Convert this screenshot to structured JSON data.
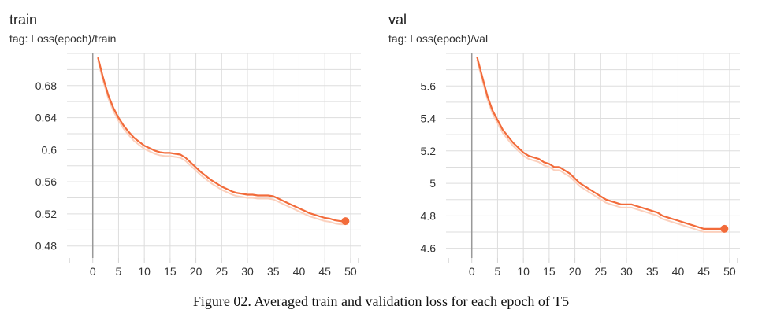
{
  "caption": "Figure 02. Averaged train and validation loss for each epoch of T5",
  "colors": {
    "line": "#f26b3a",
    "raw": "#fbd0bd",
    "grid": "#dddddd",
    "axis": "#999999",
    "tick": "#d4d4d4"
  },
  "chart_data": [
    {
      "type": "line",
      "title": "train",
      "subtitle": "tag: Loss(epoch)/train",
      "xlim": [
        -5,
        52
      ],
      "ylim": [
        0.465,
        0.72
      ],
      "xticks": [
        0,
        5,
        10,
        15,
        20,
        25,
        30,
        35,
        40,
        45,
        50
      ],
      "xtick_labels": [
        "0",
        "5",
        "10",
        "15",
        "20",
        "25",
        "30",
        "35",
        "40",
        "45",
        "50"
      ],
      "yticks": [
        0.48,
        0.52,
        0.56,
        0.6,
        0.64,
        0.68
      ],
      "ytick_labels": [
        "0.48",
        "0.52",
        "0.56",
        "0.6",
        "0.64",
        "0.68"
      ],
      "grid": true,
      "series": [
        {
          "x": [
            1,
            2,
            3,
            4,
            5,
            6,
            7,
            8,
            9,
            10,
            11,
            12,
            13,
            14,
            15,
            16,
            17,
            18,
            19,
            20,
            21,
            22,
            23,
            24,
            25,
            26,
            27,
            28,
            29,
            30,
            31,
            32,
            33,
            34,
            35,
            36,
            37,
            38,
            39,
            40,
            41,
            42,
            43,
            44,
            45,
            46,
            47,
            48,
            49
          ],
          "values": [
            0.715,
            0.69,
            0.668,
            0.652,
            0.64,
            0.63,
            0.622,
            0.615,
            0.61,
            0.605,
            0.602,
            0.599,
            0.597,
            0.596,
            0.596,
            0.595,
            0.594,
            0.59,
            0.584,
            0.578,
            0.572,
            0.567,
            0.562,
            0.558,
            0.554,
            0.551,
            0.548,
            0.546,
            0.545,
            0.544,
            0.544,
            0.543,
            0.543,
            0.543,
            0.542,
            0.539,
            0.536,
            0.533,
            0.53,
            0.527,
            0.524,
            0.521,
            0.519,
            0.517,
            0.515,
            0.514,
            0.512,
            0.511,
            0.511
          ]
        }
      ]
    },
    {
      "type": "line",
      "title": "val",
      "subtitle": "tag: Loss(epoch)/val",
      "xlim": [
        -5,
        52
      ],
      "ylim": [
        4.54,
        5.8
      ],
      "xticks": [
        0,
        5,
        10,
        15,
        20,
        25,
        30,
        35,
        40,
        45,
        50
      ],
      "xtick_labels": [
        "0",
        "5",
        "10",
        "15",
        "20",
        "25",
        "30",
        "35",
        "40",
        "45",
        "50"
      ],
      "yticks": [
        4.6,
        4.8,
        5,
        5.2,
        5.4,
        5.6
      ],
      "ytick_labels": [
        "4.6",
        "4.8",
        "5",
        "5.2",
        "5.4",
        "5.6"
      ],
      "grid": true,
      "series": [
        {
          "x": [
            1,
            2,
            3,
            4,
            5,
            6,
            7,
            8,
            9,
            10,
            11,
            12,
            13,
            14,
            15,
            16,
            17,
            18,
            19,
            20,
            21,
            22,
            23,
            24,
            25,
            26,
            27,
            28,
            29,
            30,
            31,
            32,
            33,
            34,
            35,
            36,
            37,
            38,
            39,
            40,
            41,
            42,
            43,
            44,
            45,
            46,
            47,
            48,
            49
          ],
          "values": [
            5.78,
            5.66,
            5.54,
            5.45,
            5.39,
            5.33,
            5.29,
            5.25,
            5.22,
            5.19,
            5.17,
            5.16,
            5.15,
            5.13,
            5.12,
            5.1,
            5.1,
            5.08,
            5.06,
            5.03,
            5.0,
            4.98,
            4.96,
            4.94,
            4.92,
            4.9,
            4.89,
            4.88,
            4.87,
            4.87,
            4.87,
            4.86,
            4.85,
            4.84,
            4.83,
            4.82,
            4.8,
            4.79,
            4.78,
            4.77,
            4.76,
            4.75,
            4.74,
            4.73,
            4.72,
            4.72,
            4.72,
            4.72,
            4.72
          ]
        }
      ]
    }
  ]
}
